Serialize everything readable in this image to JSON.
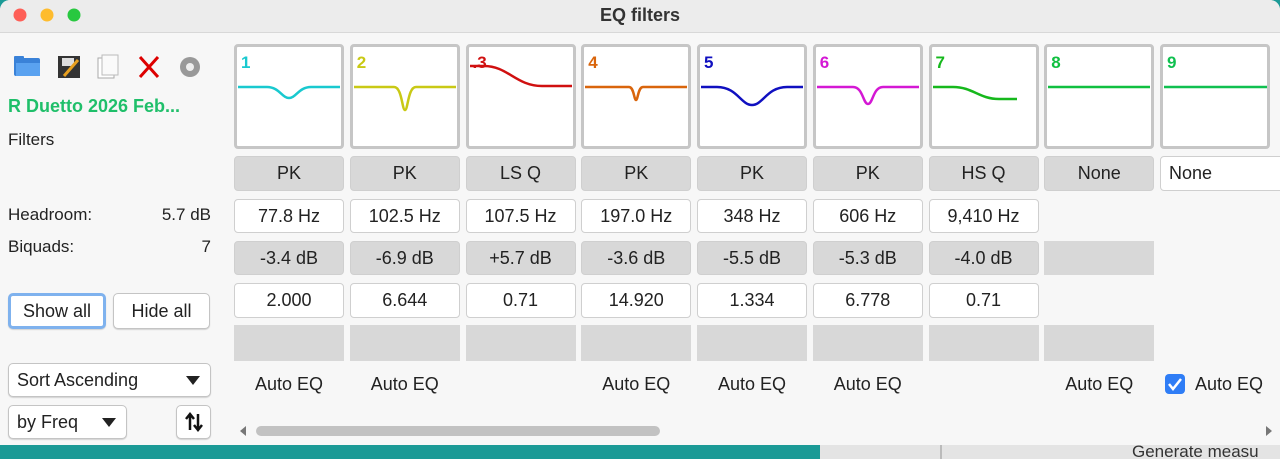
{
  "window": {
    "title": "EQ filters"
  },
  "sidebar": {
    "name": "R Duetto 2026 Feb...",
    "section": "Filters",
    "headroom_label": "Headroom:",
    "headroom": "5.7 dB",
    "biquads_label": "Biquads:",
    "biquads": 7,
    "show_all": "Show all",
    "hide_all": "Hide all",
    "sort_order": "Sort Ascending",
    "sort_by": "by Freq"
  },
  "filters": [
    {
      "label": "1",
      "color": "#19c9cf",
      "type": "PK",
      "freq": "77.8 Hz",
      "gain": "-3.4 dB",
      "q": "2.000",
      "auto_eq": "Auto EQ"
    },
    {
      "label": "2",
      "color": "#c9c915",
      "type": "PK",
      "freq": "102.5 Hz",
      "gain": "-6.9 dB",
      "q": "6.644",
      "auto_eq": "Auto EQ"
    },
    {
      "label": ".3",
      "color": "#d01010",
      "type": "LS Q",
      "freq": "107.5 Hz",
      "gain": "+5.7 dB",
      "q": "0.71"
    },
    {
      "label": "4",
      "color": "#d9650c",
      "type": "PK",
      "freq": "197.0 Hz",
      "gain": "-3.6 dB",
      "q": "14.920",
      "auto_eq": "Auto EQ"
    },
    {
      "label": "5",
      "color": "#1010c0",
      "type": "PK",
      "freq": "348 Hz",
      "gain": "-5.5 dB",
      "q": "1.334",
      "auto_eq": "Auto EQ"
    },
    {
      "label": "6",
      "color": "#d418d4",
      "type": "PK",
      "freq": "606 Hz",
      "gain": "-5.3 dB",
      "q": "6.778",
      "auto_eq": "Auto EQ"
    },
    {
      "label": "7",
      "color": "#16b81c",
      "type": "HS Q",
      "freq": "9,410 Hz",
      "gain": "-4.0 dB",
      "q": "0.71"
    },
    {
      "label": "8",
      "color": "#10c040",
      "type": "None",
      "auto_eq": "Auto EQ"
    },
    {
      "label": "9",
      "color": "#10c050",
      "type": "None",
      "auto_eq": "Auto EQ",
      "checked": true
    }
  ],
  "background": {
    "button": "Generate measu"
  }
}
